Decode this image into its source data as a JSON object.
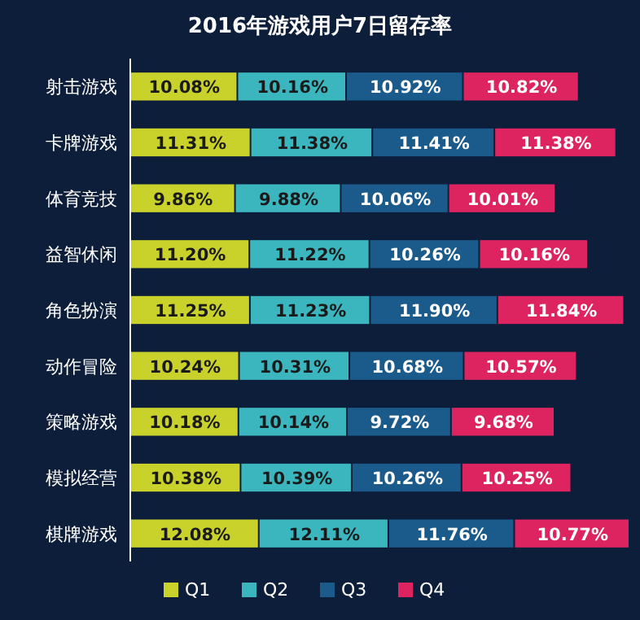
{
  "chart_data": {
    "type": "bar",
    "orientation": "horizontal",
    "stacked": true,
    "title": "2016年游戏用户7日留存率",
    "categories": [
      "射击游戏",
      "卡牌游戏",
      "体育竞技",
      "益智休闲",
      "角色扮演",
      "动作冒险",
      "策略游戏",
      "模拟经营",
      "棋牌游戏"
    ],
    "series": [
      {
        "name": "Q1",
        "color": "#c9d12b",
        "values": [
          10.08,
          11.31,
          9.86,
          11.2,
          11.25,
          10.24,
          10.18,
          10.38,
          12.08
        ],
        "value_labels": [
          "10.08%",
          "11.31%",
          "9.86%",
          "11.20%",
          "11.25%",
          "10.24%",
          "10.18%",
          "10.38%",
          "12.08%"
        ]
      },
      {
        "name": "Q2",
        "color": "#3bb6bf",
        "values": [
          10.16,
          11.38,
          9.88,
          11.22,
          11.23,
          10.31,
          10.14,
          10.39,
          12.11
        ],
        "value_labels": [
          "10.16%",
          "11.38%",
          "9.88%",
          "11.22%",
          "11.23%",
          "10.31%",
          "10.14%",
          "10.39%",
          "12.11%"
        ]
      },
      {
        "name": "Q3",
        "color": "#1b5b8c",
        "values": [
          10.92,
          11.41,
          10.06,
          10.26,
          11.9,
          10.68,
          9.72,
          10.26,
          11.76
        ],
        "value_labels": [
          "10.92%",
          "11.41%",
          "10.06%",
          "10.26%",
          "11.90%",
          "10.68%",
          "9.72%",
          "10.26%",
          "11.76%"
        ]
      },
      {
        "name": "Q4",
        "color": "#de2460",
        "values": [
          10.82,
          11.38,
          10.01,
          10.16,
          11.84,
          10.57,
          9.68,
          10.25,
          10.77
        ],
        "value_labels": [
          "10.82%",
          "11.38%",
          "10.01%",
          "10.16%",
          "11.84%",
          "10.57%",
          "9.68%",
          "10.25%",
          "10.77%"
        ]
      }
    ],
    "legend": "bottom"
  }
}
